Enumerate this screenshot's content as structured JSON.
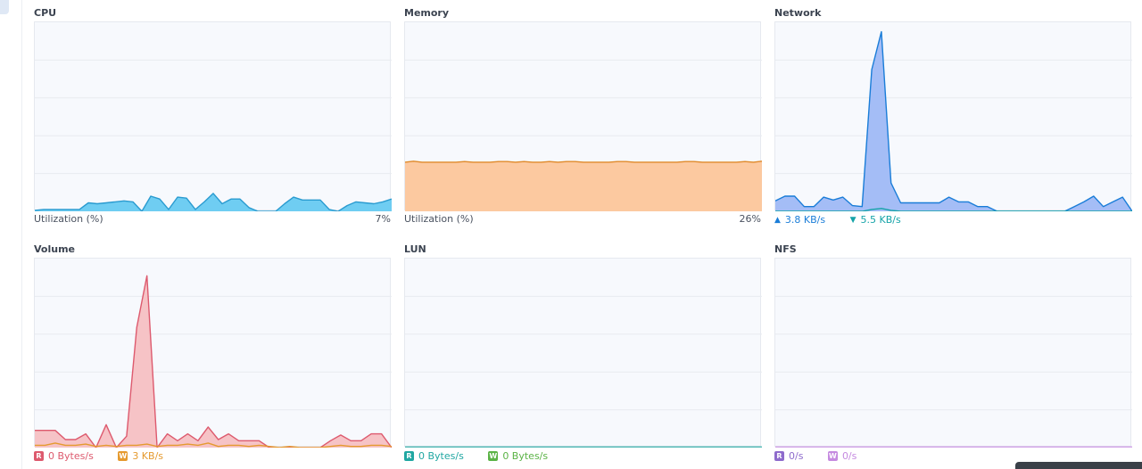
{
  "panels": {
    "cpu": {
      "title": "CPU",
      "footer_label": "Utilization  (%)",
      "footer_value": "7%",
      "line_color": "#2a9bd0",
      "fill_color": "#6fcdf2",
      "series": [
        0.5,
        1,
        1,
        1,
        1,
        1,
        4.5,
        4,
        4.5,
        5,
        5.5,
        5,
        0,
        8,
        6.5,
        1,
        7.5,
        7,
        1,
        5,
        9.5,
        4,
        6.5,
        6.5,
        2,
        0,
        0,
        0,
        4,
        7.5,
        6,
        6,
        6,
        1,
        0,
        3,
        5,
        4.5,
        4,
        5,
        6.5
      ]
    },
    "memory": {
      "title": "Memory",
      "footer_label": "Utilization  (%)",
      "footer_value": "26%",
      "line_color": "#e08a2a",
      "fill_color": "#fcc9a0",
      "series": [
        26,
        26.5,
        26,
        26,
        26,
        26,
        26,
        26.3,
        26,
        26,
        26,
        26.3,
        26.3,
        26,
        26.3,
        26,
        26,
        26.3,
        26,
        26.3,
        26.3,
        26,
        26,
        26,
        26,
        26.3,
        26.3,
        26,
        26,
        26,
        26,
        26,
        26,
        26.3,
        26.3,
        26,
        26,
        26,
        26,
        26,
        26.3,
        26,
        26.5
      ]
    },
    "network": {
      "title": "Network",
      "upload_label": "3.8 KB/s",
      "download_label": "5.5 KB/s",
      "upload_color": "#1a7dd8",
      "download_color": "#14a3a8",
      "up_series": [
        1.1,
        1.6,
        1.6,
        0.5,
        0.5,
        1.5,
        1.2,
        1.5,
        0.6,
        0.5,
        15,
        19,
        3,
        0.9,
        0.9,
        0.9,
        0.9,
        0.9,
        1.5,
        1,
        1,
        0.5,
        0.5,
        0,
        0,
        0,
        0,
        0,
        0,
        0,
        0,
        0.5,
        1,
        1.6,
        0.5,
        1,
        1.5,
        0
      ],
      "down_series": [
        0,
        0,
        0,
        0,
        0,
        0,
        0,
        0,
        0,
        0,
        0.2,
        0.3,
        0.1,
        0,
        0,
        0,
        0,
        0,
        0,
        0,
        0,
        0,
        0,
        0,
        0,
        0,
        0,
        0,
        0,
        0,
        0,
        0,
        0,
        0,
        0,
        0,
        0,
        0
      ],
      "y_max": 20
    },
    "volume": {
      "title": "Volume",
      "read_badge": "R",
      "read_label": "0 Bytes/s",
      "write_badge": "W",
      "write_label": "3 KB/s",
      "read_color": "#dd5a6e",
      "read_fill": "#f6c3c6",
      "write_color": "#e59a2f",
      "read_series": [
        1.5,
        1.5,
        1.5,
        0.7,
        0.7,
        1.2,
        0,
        2,
        0,
        1,
        10.5,
        15,
        0,
        1.2,
        0.6,
        1.2,
        0.6,
        1.8,
        0.7,
        1.2,
        0.6,
        0.6,
        0.6,
        0,
        0,
        0,
        0,
        0,
        0,
        0.6,
        1.1,
        0.6,
        0.6,
        1.2,
        1.2,
        0
      ],
      "write_series": [
        0.2,
        0.2,
        0.4,
        0.2,
        0.2,
        0.3,
        0.1,
        0.2,
        0.1,
        0.2,
        0.2,
        0.3,
        0.1,
        0.2,
        0.2,
        0.3,
        0.2,
        0.4,
        0.1,
        0.2,
        0.2,
        0.1,
        0.2,
        0.1,
        0,
        0.1,
        0,
        0,
        0,
        0.1,
        0.2,
        0.1,
        0.1,
        0.2,
        0.2,
        0.1
      ],
      "y_max": 16.5
    },
    "lun": {
      "title": "LUN",
      "read_badge": "R",
      "read_label": "0 Bytes/s",
      "write_badge": "W",
      "write_label": "0 Bytes/s",
      "read_color": "#20a7a2",
      "write_color": "#5bb346"
    },
    "nfs": {
      "title": "NFS",
      "read_badge": "R",
      "read_label": "0/s",
      "write_badge": "W",
      "write_label": "0/s",
      "read_color": "#8e6bcc",
      "write_color": "#c58ae0"
    }
  }
}
